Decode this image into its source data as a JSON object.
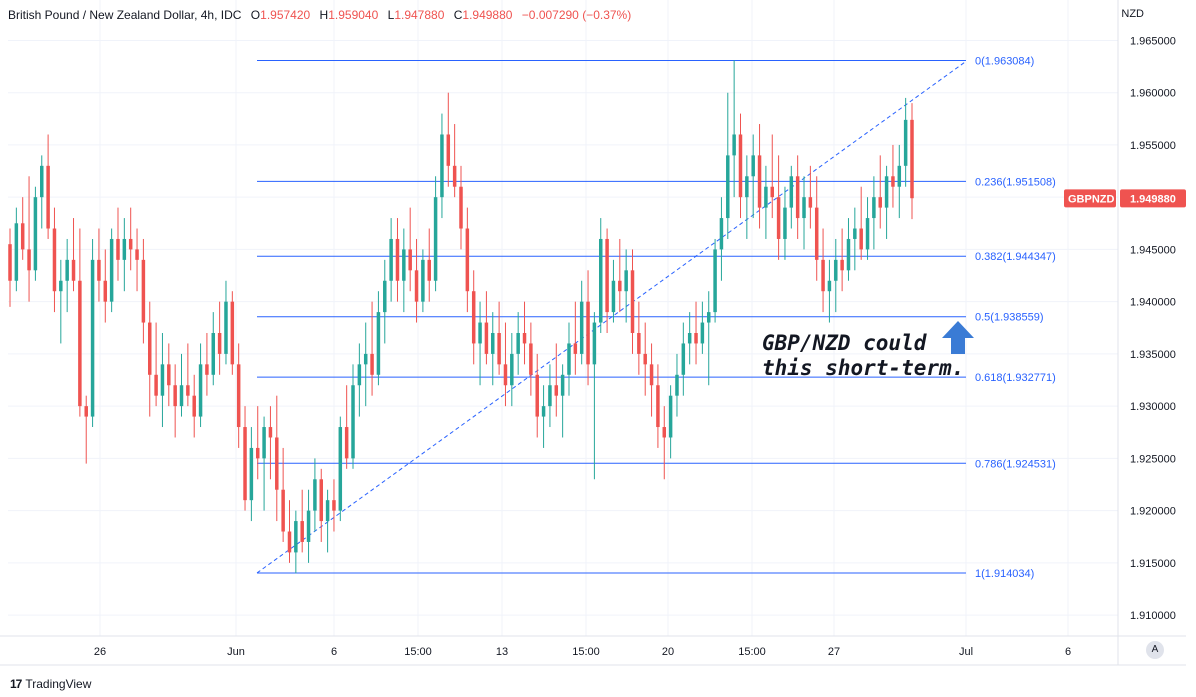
{
  "header": {
    "symbol_title": "British Pound / New Zealand Dollar, 4h, IDC",
    "open_label": "O",
    "open": "1.957420",
    "high_label": "H",
    "high": "1.959040",
    "low_label": "L",
    "low": "1.947880",
    "close_label": "C",
    "close": "1.949880",
    "change": "−0.007290 (−0.37%)"
  },
  "axis_currency": "NZD",
  "price_badge": {
    "symbol": "GBPNZD",
    "value": "1.949880",
    "color": "#ef5350"
  },
  "auto_button": "A",
  "footer": {
    "brand": "TradingView"
  },
  "colors": {
    "up": "#26a69a",
    "down": "#ef5350",
    "fib": "#2962ff"
  },
  "chart_data": {
    "type": "candlestick",
    "ylim": [
      1.908,
      1.966
    ],
    "y_ticks": [
      "1.910000",
      "1.915000",
      "1.920000",
      "1.925000",
      "1.930000",
      "1.935000",
      "1.940000",
      "1.945000",
      "1.950000",
      "1.955000",
      "1.960000",
      "1.965000"
    ],
    "x_ticks": [
      "26",
      "Jun",
      "6",
      "15:00",
      "13",
      "15:00",
      "20",
      "15:00",
      "27",
      "Jul",
      "6"
    ],
    "fib_levels": [
      {
        "ratio": "0",
        "price": 1.963084,
        "label": "0(1.963084)"
      },
      {
        "ratio": "0.236",
        "price": 1.951508,
        "label": "0.236(1.951508)"
      },
      {
        "ratio": "0.382",
        "price": 1.944347,
        "label": "0.382(1.944347)"
      },
      {
        "ratio": "0.5",
        "price": 1.938559,
        "label": "0.5(1.938559)"
      },
      {
        "ratio": "0.618",
        "price": 1.932771,
        "label": "0.618(1.932771)"
      },
      {
        "ratio": "0.786",
        "price": 1.924531,
        "label": "0.786(1.924531)"
      },
      {
        "ratio": "1",
        "price": 1.914034,
        "label": "1(1.914034)"
      }
    ],
    "annotation": {
      "line1": "GBP/NZD could",
      "line2": "this short-term."
    },
    "trendline": {
      "from": [
        1.914034
      ],
      "to": [
        1.9595
      ]
    },
    "candles": [
      [
        1.9455,
        1.947,
        1.9395,
        1.942
      ],
      [
        1.942,
        1.949,
        1.941,
        1.9475
      ],
      [
        1.9475,
        1.95,
        1.944,
        1.945
      ],
      [
        1.945,
        1.952,
        1.94,
        1.943
      ],
      [
        1.943,
        1.951,
        1.942,
        1.95
      ],
      [
        1.95,
        1.954,
        1.947,
        1.953
      ],
      [
        1.953,
        1.956,
        1.946,
        1.947
      ],
      [
        1.947,
        1.949,
        1.939,
        1.941
      ],
      [
        1.941,
        1.944,
        1.936,
        1.942
      ],
      [
        1.942,
        1.946,
        1.939,
        1.944
      ],
      [
        1.944,
        1.948,
        1.941,
        1.942
      ],
      [
        1.942,
        1.947,
        1.929,
        1.93
      ],
      [
        1.93,
        1.931,
        1.9245,
        1.929
      ],
      [
        1.929,
        1.946,
        1.928,
        1.944
      ],
      [
        1.944,
        1.947,
        1.94,
        1.942
      ],
      [
        1.942,
        1.945,
        1.938,
        1.94
      ],
      [
        1.94,
        1.947,
        1.939,
        1.946
      ],
      [
        1.946,
        1.949,
        1.942,
        1.944
      ],
      [
        1.944,
        1.948,
        1.941,
        1.946
      ],
      [
        1.946,
        1.949,
        1.943,
        1.945
      ],
      [
        1.945,
        1.947,
        1.941,
        1.944
      ],
      [
        1.944,
        1.946,
        1.936,
        1.938
      ],
      [
        1.938,
        1.94,
        1.929,
        1.933
      ],
      [
        1.933,
        1.938,
        1.93,
        1.931
      ],
      [
        1.931,
        1.937,
        1.928,
        1.934
      ],
      [
        1.934,
        1.936,
        1.93,
        1.932
      ],
      [
        1.932,
        1.934,
        1.927,
        1.93
      ],
      [
        1.93,
        1.935,
        1.929,
        1.932
      ],
      [
        1.932,
        1.936,
        1.93,
        1.931
      ],
      [
        1.931,
        1.933,
        1.927,
        1.929
      ],
      [
        1.929,
        1.936,
        1.928,
        1.934
      ],
      [
        1.934,
        1.937,
        1.931,
        1.933
      ],
      [
        1.933,
        1.939,
        1.932,
        1.937
      ],
      [
        1.937,
        1.94,
        1.933,
        1.935
      ],
      [
        1.935,
        1.942,
        1.934,
        1.94
      ],
      [
        1.94,
        1.941,
        1.933,
        1.934
      ],
      [
        1.934,
        1.936,
        1.926,
        1.928
      ],
      [
        1.928,
        1.93,
        1.92,
        1.921
      ],
      [
        1.921,
        1.928,
        1.919,
        1.926
      ],
      [
        1.926,
        1.93,
        1.923,
        1.925
      ],
      [
        1.925,
        1.929,
        1.92,
        1.928
      ],
      [
        1.928,
        1.93,
        1.923,
        1.927
      ],
      [
        1.927,
        1.931,
        1.919,
        1.922
      ],
      [
        1.922,
        1.926,
        1.917,
        1.918
      ],
      [
        1.918,
        1.921,
        1.915,
        1.916
      ],
      [
        1.916,
        1.92,
        1.914,
        1.919
      ],
      [
        1.919,
        1.922,
        1.916,
        1.917
      ],
      [
        1.917,
        1.922,
        1.915,
        1.92
      ],
      [
        1.92,
        1.925,
        1.918,
        1.923
      ],
      [
        1.923,
        1.924,
        1.917,
        1.919
      ],
      [
        1.919,
        1.922,
        1.916,
        1.921
      ],
      [
        1.921,
        1.923,
        1.918,
        1.92
      ],
      [
        1.92,
        1.929,
        1.919,
        1.928
      ],
      [
        1.928,
        1.932,
        1.924,
        1.925
      ],
      [
        1.925,
        1.934,
        1.924,
        1.932
      ],
      [
        1.932,
        1.936,
        1.929,
        1.934
      ],
      [
        1.934,
        1.938,
        1.93,
        1.935
      ],
      [
        1.935,
        1.94,
        1.931,
        1.933
      ],
      [
        1.933,
        1.941,
        1.932,
        1.939
      ],
      [
        1.939,
        1.944,
        1.936,
        1.942
      ],
      [
        1.942,
        1.948,
        1.94,
        1.946
      ],
      [
        1.946,
        1.948,
        1.94,
        1.942
      ],
      [
        1.942,
        1.947,
        1.939,
        1.945
      ],
      [
        1.945,
        1.949,
        1.941,
        1.943
      ],
      [
        1.943,
        1.946,
        1.938,
        1.94
      ],
      [
        1.94,
        1.945,
        1.939,
        1.944
      ],
      [
        1.944,
        1.947,
        1.94,
        1.942
      ],
      [
        1.942,
        1.952,
        1.941,
        1.95
      ],
      [
        1.95,
        1.958,
        1.948,
        1.956
      ],
      [
        1.956,
        1.96,
        1.951,
        1.953
      ],
      [
        1.953,
        1.957,
        1.95,
        1.951
      ],
      [
        1.951,
        1.953,
        1.945,
        1.947
      ],
      [
        1.947,
        1.949,
        1.939,
        1.941
      ],
      [
        1.941,
        1.943,
        1.934,
        1.936
      ],
      [
        1.936,
        1.94,
        1.932,
        1.938
      ],
      [
        1.938,
        1.941,
        1.934,
        1.935
      ],
      [
        1.935,
        1.939,
        1.932,
        1.937
      ],
      [
        1.937,
        1.94,
        1.933,
        1.934
      ],
      [
        1.934,
        1.938,
        1.93,
        1.932
      ],
      [
        1.932,
        1.937,
        1.93,
        1.935
      ],
      [
        1.935,
        1.939,
        1.933,
        1.937
      ],
      [
        1.937,
        1.94,
        1.934,
        1.936
      ],
      [
        1.936,
        1.938,
        1.931,
        1.933
      ],
      [
        1.933,
        1.935,
        1.927,
        1.929
      ],
      [
        1.929,
        1.932,
        1.926,
        1.93
      ],
      [
        1.93,
        1.934,
        1.928,
        1.932
      ],
      [
        1.932,
        1.936,
        1.929,
        1.931
      ],
      [
        1.931,
        1.934,
        1.927,
        1.933
      ],
      [
        1.933,
        1.938,
        1.931,
        1.936
      ],
      [
        1.936,
        1.94,
        1.933,
        1.935
      ],
      [
        1.935,
        1.942,
        1.934,
        1.94
      ],
      [
        1.94,
        1.943,
        1.932,
        1.934
      ],
      [
        1.934,
        1.939,
        1.923,
        1.938
      ],
      [
        1.938,
        1.948,
        1.937,
        1.946
      ],
      [
        1.946,
        1.947,
        1.937,
        1.939
      ],
      [
        1.939,
        1.944,
        1.938,
        1.942
      ],
      [
        1.942,
        1.946,
        1.939,
        1.941
      ],
      [
        1.941,
        1.945,
        1.938,
        1.943
      ],
      [
        1.943,
        1.945,
        1.935,
        1.937
      ],
      [
        1.937,
        1.94,
        1.933,
        1.935
      ],
      [
        1.935,
        1.938,
        1.931,
        1.934
      ],
      [
        1.934,
        1.936,
        1.929,
        1.932
      ],
      [
        1.932,
        1.934,
        1.926,
        1.928
      ],
      [
        1.928,
        1.93,
        1.923,
        1.927
      ],
      [
        1.927,
        1.932,
        1.925,
        1.931
      ],
      [
        1.931,
        1.935,
        1.929,
        1.933
      ],
      [
        1.933,
        1.938,
        1.931,
        1.936
      ],
      [
        1.936,
        1.939,
        1.934,
        1.937
      ],
      [
        1.937,
        1.94,
        1.934,
        1.936
      ],
      [
        1.936,
        1.94,
        1.935,
        1.938
      ],
      [
        1.938,
        1.941,
        1.932,
        1.939
      ],
      [
        1.939,
        1.946,
        1.938,
        1.945
      ],
      [
        1.945,
        1.95,
        1.942,
        1.948
      ],
      [
        1.948,
        1.96,
        1.946,
        1.954
      ],
      [
        1.954,
        1.9631,
        1.95,
        1.956
      ],
      [
        1.956,
        1.958,
        1.948,
        1.95
      ],
      [
        1.95,
        1.954,
        1.946,
        1.952
      ],
      [
        1.952,
        1.956,
        1.948,
        1.954
      ],
      [
        1.954,
        1.957,
        1.947,
        1.949
      ],
      [
        1.949,
        1.953,
        1.946,
        1.951
      ],
      [
        1.951,
        1.956,
        1.948,
        1.95
      ],
      [
        1.95,
        1.954,
        1.944,
        1.946
      ],
      [
        1.946,
        1.951,
        1.944,
        1.949
      ],
      [
        1.949,
        1.953,
        1.947,
        1.952
      ],
      [
        1.952,
        1.954,
        1.946,
        1.948
      ],
      [
        1.948,
        1.952,
        1.945,
        1.95
      ],
      [
        1.95,
        1.953,
        1.947,
        1.949
      ],
      [
        1.949,
        1.952,
        1.942,
        1.944
      ],
      [
        1.944,
        1.947,
        1.939,
        1.941
      ],
      [
        1.941,
        1.944,
        1.938,
        1.942
      ],
      [
        1.942,
        1.946,
        1.939,
        1.944
      ],
      [
        1.944,
        1.947,
        1.941,
        1.943
      ],
      [
        1.943,
        1.948,
        1.942,
        1.946
      ],
      [
        1.946,
        1.949,
        1.943,
        1.947
      ],
      [
        1.947,
        1.951,
        1.944,
        1.945
      ],
      [
        1.945,
        1.95,
        1.944,
        1.948
      ],
      [
        1.948,
        1.952,
        1.945,
        1.95
      ],
      [
        1.95,
        1.954,
        1.947,
        1.949
      ],
      [
        1.949,
        1.953,
        1.946,
        1.952
      ],
      [
        1.952,
        1.955,
        1.949,
        1.951
      ],
      [
        1.951,
        1.955,
        1.948,
        1.953
      ],
      [
        1.953,
        1.9595,
        1.951,
        1.9574
      ],
      [
        1.9574,
        1.959,
        1.9479,
        1.9499
      ]
    ]
  }
}
